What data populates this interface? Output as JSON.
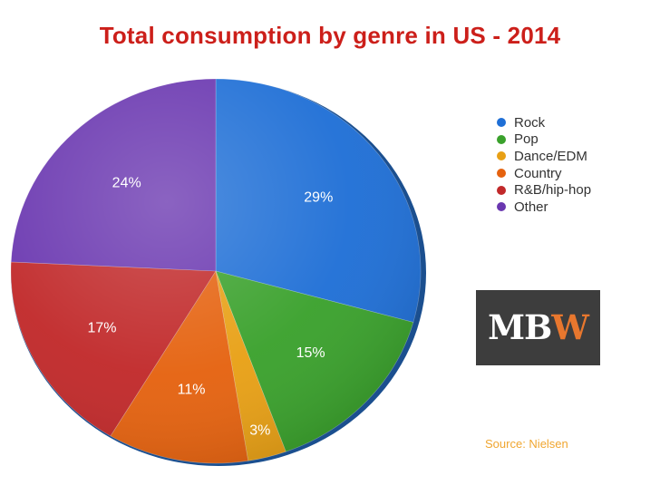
{
  "chart_data": {
    "type": "pie",
    "title": "Total consumption by genre in US - 2014",
    "slices": [
      {
        "name": "Rock",
        "value": 29,
        "label": "29%",
        "color": "#1f6fd6"
      },
      {
        "name": "Pop",
        "value": 15,
        "label": "15%",
        "color": "#3aa12c"
      },
      {
        "name": "Dance/EDM",
        "value": 3,
        "label": "3%",
        "color": "#e8a015"
      },
      {
        "name": "Country",
        "value": 11,
        "label": "11%",
        "color": "#e5620f"
      },
      {
        "name": "R&B/hip-hop",
        "value": 17,
        "label": "17%",
        "color": "#c1292a"
      },
      {
        "name": "Other",
        "value": 24,
        "label": "24%",
        "color": "#6a37b0"
      }
    ],
    "legend_position": "right"
  },
  "logo": {
    "text_main": "MB",
    "text_accent": "W"
  },
  "source": "Source: Nielsen"
}
